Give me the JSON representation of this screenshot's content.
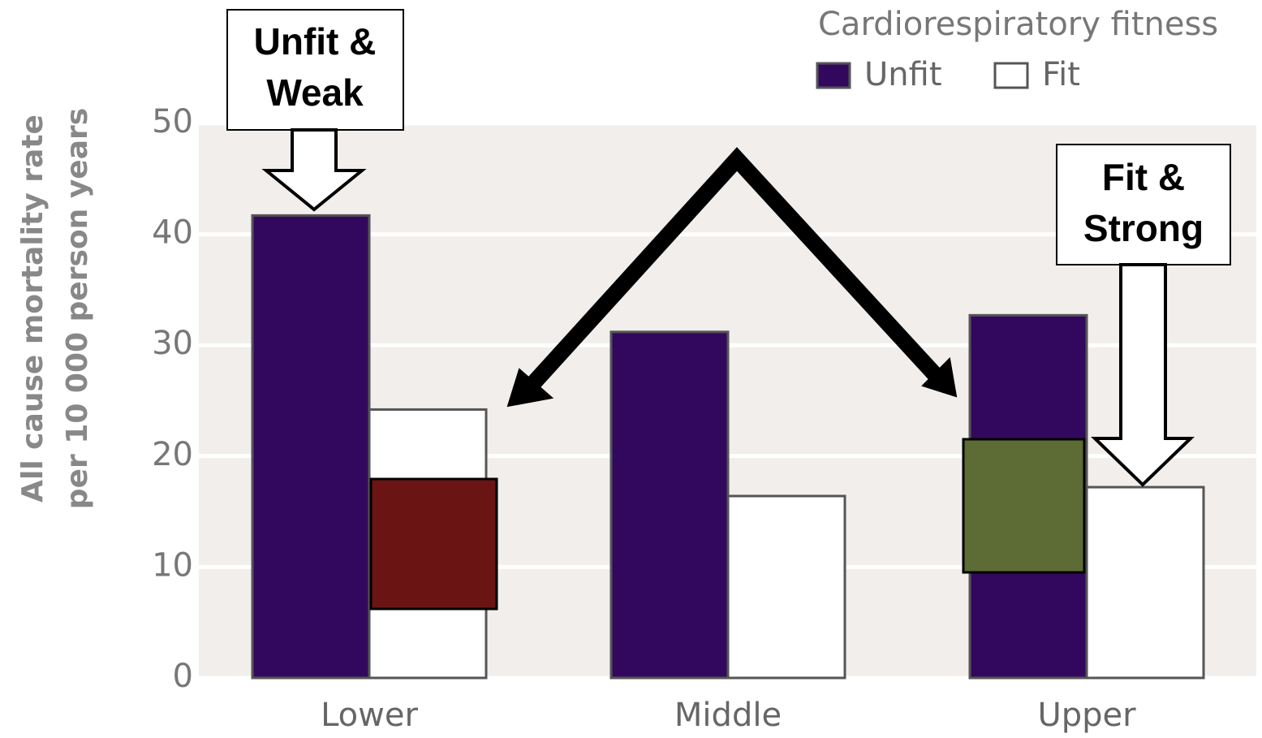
{
  "chart_data": {
    "type": "bar",
    "ylabel": [
      "All cause mortality rate",
      "per 10 000 person years"
    ],
    "categories": [
      "Lower",
      "Middle",
      "Upper"
    ],
    "legend_title": "Cardiorespiratory fitness",
    "legend_position": "top-right",
    "series": [
      {
        "name": "Unfit",
        "color": "#32085f",
        "values": [
          41.7,
          31.2,
          32.7
        ]
      },
      {
        "name": "Fit",
        "color": "#ffffff",
        "values": [
          24.2,
          16.4,
          17.2
        ]
      }
    ],
    "ylim": [
      0,
      50
    ],
    "yticks": [
      0,
      10,
      20,
      30,
      40,
      50
    ],
    "grid": true,
    "annotations": [
      [
        "Unfit &",
        "Weak"
      ],
      [
        "Fit &",
        "Strong"
      ]
    ]
  }
}
